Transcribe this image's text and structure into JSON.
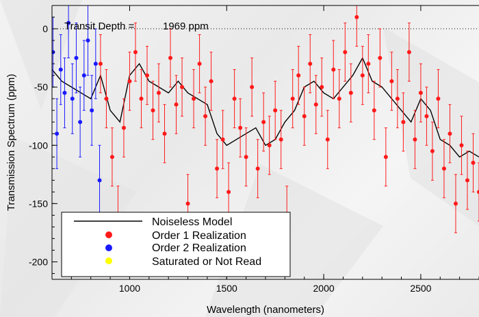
{
  "chart_data": {
    "type": "line",
    "title": "",
    "xlabel": "Wavelength (nanometers)",
    "ylabel": "Transmission Spectrum (ppm)",
    "xlim": [
      600,
      2800
    ],
    "ylim": [
      -215,
      20
    ],
    "xticks": [
      1000,
      1500,
      2000,
      2500
    ],
    "yticks": [
      0,
      -50,
      -100,
      -150,
      -200
    ],
    "zero_line": "dotted",
    "annotation": {
      "label": "Transit Depth =",
      "value": "1969 ppm"
    },
    "legend": {
      "position": "bottom-left",
      "entries": [
        {
          "label": "Noiseless Model",
          "color": "#000000",
          "marker": "line"
        },
        {
          "label": "Order 1 Realization",
          "color": "#ff1a1a",
          "marker": "dot"
        },
        {
          "label": "Order 2 Realization",
          "color": "#1a1aff",
          "marker": "dot"
        },
        {
          "label": "Saturated or Not Read",
          "color": "#ffff00",
          "marker": "dot"
        }
      ]
    },
    "series": [
      {
        "name": "Noiseless Model",
        "type": "line",
        "color": "#000000",
        "x": [
          600,
          650,
          700,
          750,
          800,
          850,
          900,
          950,
          1000,
          1050,
          1100,
          1150,
          1200,
          1250,
          1300,
          1350,
          1400,
          1450,
          1500,
          1550,
          1600,
          1650,
          1700,
          1750,
          1800,
          1850,
          1900,
          1950,
          2000,
          2050,
          2100,
          2150,
          2200,
          2250,
          2300,
          2350,
          2400,
          2450,
          2500,
          2550,
          2600,
          2650,
          2700,
          2750,
          2800
        ],
        "y": [
          -35,
          -45,
          -50,
          -55,
          -60,
          -40,
          -70,
          -80,
          -40,
          -30,
          -45,
          -50,
          -55,
          -45,
          -55,
          -60,
          -65,
          -90,
          -100,
          -95,
          -90,
          -85,
          -100,
          -95,
          -80,
          -70,
          -50,
          -45,
          -55,
          -60,
          -50,
          -40,
          -25,
          -45,
          -50,
          -60,
          -70,
          -80,
          -60,
          -70,
          -95,
          -100,
          -110,
          -105,
          -110
        ]
      },
      {
        "name": "Order 1 Realization",
        "type": "scatter",
        "color": "#ff1a1a",
        "x": [
          850,
          880,
          910,
          940,
          970,
          1000,
          1030,
          1060,
          1090,
          1120,
          1150,
          1180,
          1210,
          1240,
          1270,
          1300,
          1330,
          1360,
          1390,
          1420,
          1450,
          1480,
          1510,
          1540,
          1570,
          1600,
          1630,
          1660,
          1690,
          1720,
          1750,
          1780,
          1810,
          1840,
          1870,
          1900,
          1930,
          1960,
          1990,
          2020,
          2050,
          2080,
          2110,
          2140,
          2170,
          2200,
          2230,
          2260,
          2290,
          2320,
          2350,
          2380,
          2410,
          2440,
          2470,
          2500,
          2530,
          2560,
          2590,
          2620,
          2650,
          2680,
          2710,
          2740,
          2770,
          2800
        ],
        "y": [
          -30,
          -60,
          -110,
          -160,
          -85,
          -45,
          -20,
          -60,
          -40,
          -70,
          -55,
          -90,
          -25,
          -65,
          -50,
          -150,
          -60,
          -30,
          -75,
          -45,
          -120,
          -95,
          -140,
          -60,
          -85,
          -110,
          -50,
          -120,
          -80,
          -100,
          -70,
          -95,
          -160,
          -60,
          -40,
          -75,
          -30,
          -65,
          -50,
          -95,
          -35,
          -60,
          -20,
          -55,
          10,
          -40,
          -30,
          -70,
          -25,
          -110,
          -45,
          -60,
          -80,
          -20,
          -95,
          -55,
          -75,
          -105,
          -60,
          -120,
          -90,
          -150,
          -100,
          -130,
          -115,
          -140
        ],
        "err": [
          25,
          25,
          25,
          25,
          25,
          25,
          25,
          25,
          25,
          25,
          25,
          25,
          25,
          25,
          25,
          25,
          25,
          25,
          25,
          25,
          25,
          25,
          25,
          25,
          25,
          25,
          25,
          25,
          25,
          25,
          25,
          25,
          25,
          25,
          25,
          25,
          25,
          25,
          25,
          25,
          25,
          25,
          25,
          25,
          25,
          25,
          25,
          25,
          25,
          25,
          25,
          25,
          25,
          25,
          25,
          25,
          25,
          25,
          25,
          25,
          25,
          25,
          25,
          25,
          25,
          25
        ]
      },
      {
        "name": "Order 2 Realization",
        "type": "scatter",
        "color": "#1a1aff",
        "x": [
          605,
          625,
          645,
          665,
          685,
          705,
          725,
          745,
          765,
          785,
          805,
          825,
          845
        ],
        "y": [
          -20,
          -90,
          -35,
          -55,
          5,
          -60,
          -25,
          -80,
          -40,
          -10,
          -70,
          -30,
          -130
        ],
        "err": [
          30,
          30,
          30,
          30,
          30,
          30,
          30,
          30,
          30,
          30,
          30,
          30,
          30
        ]
      }
    ]
  }
}
